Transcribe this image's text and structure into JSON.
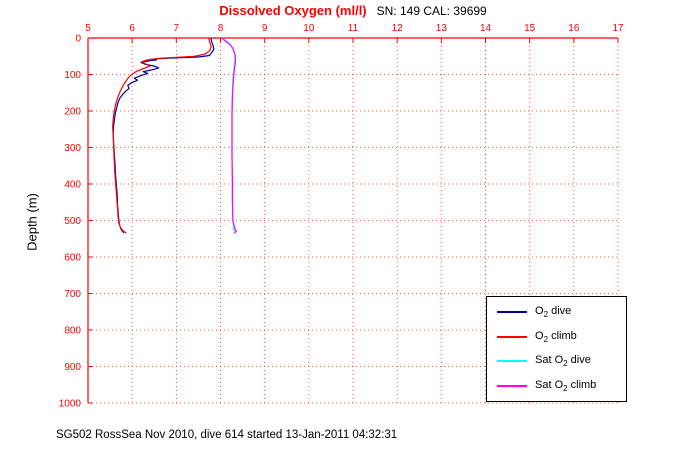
{
  "header": {
    "title": "Dissolved Oxygen (ml/l)",
    "sn_cal": "SN: 149  CAL: 39699"
  },
  "axes": {
    "ylabel": "Depth (m)"
  },
  "caption": "SG502 RossSea Nov 2010, dive 614 started 13-Jan-2011 04:32:31",
  "colors": {
    "background": "#ffffff",
    "axis": "#ff0000",
    "grid": "#ff0000",
    "title": "#ff0000",
    "text": "#000000",
    "o2_dive": "#000099",
    "o2_climb": "#ff0000",
    "sat_o2_dive": "#00ffff",
    "sat_o2_climb": "#ff00ff"
  },
  "legend": {
    "entries": [
      {
        "pre": "O",
        "sub": "2",
        "rest": " dive",
        "color_key": "o2_dive"
      },
      {
        "pre": "O",
        "sub": "2",
        "rest": " climb",
        "color_key": "o2_climb"
      },
      {
        "pre": "Sat O",
        "sub": "2",
        "rest": " dive",
        "color_key": "sat_o2_dive"
      },
      {
        "pre": "Sat O",
        "sub": "2",
        "rest": " climb",
        "color_key": "sat_o2_climb"
      }
    ]
  },
  "chart_data": {
    "type": "line",
    "title": "Dissolved Oxygen (ml/l)",
    "xlabel": "",
    "ylabel": "Depth (m)",
    "xlim": [
      5,
      17
    ],
    "ylim": [
      0,
      1000
    ],
    "x_ticks": [
      5,
      6,
      7,
      8,
      9,
      10,
      11,
      12,
      13,
      14,
      15,
      16,
      17
    ],
    "y_ticks": [
      0,
      100,
      200,
      300,
      400,
      500,
      600,
      700,
      800,
      900,
      1000
    ],
    "grid": true,
    "x_axis_location": "top",
    "y_axis_reversed": true,
    "legend": [
      "O2 dive",
      "O2 climb",
      "Sat O2 dive",
      "Sat O2 climb"
    ],
    "legend_position": "lower right",
    "series": [
      {
        "name": "O2 dive",
        "color_key": "o2_dive",
        "points": [
          [
            7.78,
            0
          ],
          [
            7.8,
            10
          ],
          [
            7.83,
            20
          ],
          [
            7.85,
            30
          ],
          [
            7.8,
            40
          ],
          [
            7.75,
            48
          ],
          [
            7.5,
            52
          ],
          [
            7.1,
            54
          ],
          [
            6.7,
            56
          ],
          [
            6.45,
            58
          ],
          [
            6.55,
            60
          ],
          [
            6.35,
            63
          ],
          [
            6.2,
            67
          ],
          [
            6.3,
            72
          ],
          [
            6.5,
            77
          ],
          [
            6.6,
            82
          ],
          [
            6.45,
            87
          ],
          [
            6.25,
            92
          ],
          [
            6.35,
            97
          ],
          [
            6.2,
            103
          ],
          [
            6.05,
            110
          ],
          [
            6.12,
            116
          ],
          [
            5.98,
            123
          ],
          [
            5.9,
            130
          ],
          [
            5.93,
            138
          ],
          [
            5.85,
            146
          ],
          [
            5.78,
            155
          ],
          [
            5.72,
            165
          ],
          [
            5.68,
            177
          ],
          [
            5.65,
            190
          ],
          [
            5.62,
            205
          ],
          [
            5.6,
            222
          ],
          [
            5.58,
            240
          ],
          [
            5.57,
            260
          ],
          [
            5.58,
            285
          ],
          [
            5.59,
            310
          ],
          [
            5.61,
            340
          ],
          [
            5.62,
            370
          ],
          [
            5.64,
            400
          ],
          [
            5.66,
            430
          ],
          [
            5.67,
            460
          ],
          [
            5.69,
            490
          ],
          [
            5.71,
            510
          ],
          [
            5.74,
            522
          ],
          [
            5.78,
            530
          ],
          [
            5.82,
            534
          ]
        ]
      },
      {
        "name": "O2 climb",
        "color_key": "o2_climb",
        "points": [
          [
            7.73,
            0
          ],
          [
            7.76,
            12
          ],
          [
            7.79,
            24
          ],
          [
            7.75,
            35
          ],
          [
            7.65,
            44
          ],
          [
            7.4,
            50
          ],
          [
            7.0,
            53
          ],
          [
            6.6,
            56
          ],
          [
            6.35,
            60
          ],
          [
            6.22,
            65
          ],
          [
            6.3,
            71
          ],
          [
            6.4,
            77
          ],
          [
            6.25,
            84
          ],
          [
            6.1,
            91
          ],
          [
            6.0,
            99
          ],
          [
            5.92,
            108
          ],
          [
            5.86,
            118
          ],
          [
            5.8,
            129
          ],
          [
            5.75,
            141
          ],
          [
            5.7,
            154
          ],
          [
            5.66,
            168
          ],
          [
            5.62,
            184
          ],
          [
            5.59,
            202
          ],
          [
            5.57,
            222
          ],
          [
            5.56,
            245
          ],
          [
            5.57,
            270
          ],
          [
            5.58,
            298
          ],
          [
            5.59,
            328
          ],
          [
            5.6,
            358
          ],
          [
            5.62,
            390
          ],
          [
            5.64,
            422
          ],
          [
            5.66,
            455
          ],
          [
            5.68,
            488
          ],
          [
            5.7,
            508
          ],
          [
            5.74,
            520
          ],
          [
            5.8,
            529
          ],
          [
            5.87,
            534
          ]
        ]
      },
      {
        "name": "Sat O2 dive",
        "color_key": "sat_o2_dive",
        "points": [
          [
            8.05,
            0
          ],
          [
            8.15,
            10
          ],
          [
            8.24,
            20
          ],
          [
            8.3,
            35
          ],
          [
            8.33,
            55
          ],
          [
            8.31,
            80
          ],
          [
            8.28,
            110
          ],
          [
            8.27,
            150
          ],
          [
            8.26,
            200
          ],
          [
            8.26,
            260
          ],
          [
            8.26,
            320
          ],
          [
            8.27,
            380
          ],
          [
            8.27,
            440
          ],
          [
            8.28,
            500
          ],
          [
            8.3,
            525
          ],
          [
            8.33,
            532
          ]
        ]
      },
      {
        "name": "Sat O2 climb",
        "color_key": "sat_o2_climb",
        "points": [
          [
            8.03,
            0
          ],
          [
            8.1,
            8
          ],
          [
            8.2,
            16
          ],
          [
            8.28,
            28
          ],
          [
            8.33,
            45
          ],
          [
            8.34,
            65
          ],
          [
            8.31,
            90
          ],
          [
            8.29,
            120
          ],
          [
            8.27,
            160
          ],
          [
            8.26,
            210
          ],
          [
            8.26,
            270
          ],
          [
            8.26,
            330
          ],
          [
            8.27,
            390
          ],
          [
            8.27,
            450
          ],
          [
            8.28,
            500
          ],
          [
            8.32,
            520
          ],
          [
            8.36,
            530
          ],
          [
            8.3,
            535
          ]
        ]
      }
    ]
  }
}
